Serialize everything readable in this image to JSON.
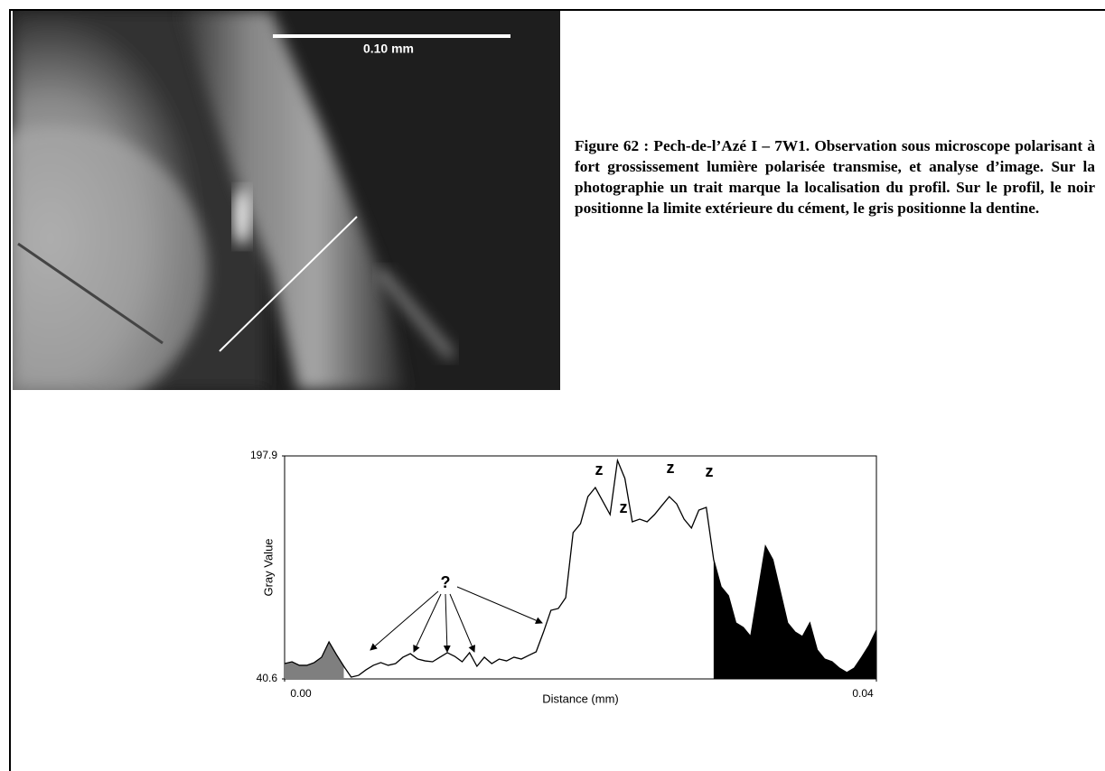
{
  "figure": {
    "scale_bar": "0.10 mm",
    "caption": "Figure 62 : Pech-de-l’Azé I – 7W1. Observation sous microscope polarisant à fort grossissement lumière polarisée transmise, et analyse d’image. Sur la photographie un trait marque la localisation du profil. Sur le profil, le noir positionne la limite extérieure du cément, le gris positionne la dentine."
  },
  "chart_data": {
    "type": "line",
    "x_label": "Distance (mm)",
    "y_label": "Gray Value",
    "xlim": [
      0,
      0.04
    ],
    "ylim": [
      40.6,
      197.9
    ],
    "xticks": [
      {
        "value": 0,
        "label": "0.00"
      },
      {
        "value": 0.04,
        "label": "0.04"
      }
    ],
    "yticks": [
      40.6,
      197.9
    ],
    "color": "#000000",
    "x": [
      0,
      0.0005,
      0.001,
      0.0015,
      0.002,
      0.0025,
      0.003,
      0.0035,
      0.004,
      0.0045,
      0.005,
      0.0055,
      0.006,
      0.0065,
      0.007,
      0.0075,
      0.008,
      0.0085,
      0.009,
      0.0095,
      0.01,
      0.0105,
      0.011,
      0.0115,
      0.012,
      0.0125,
      0.013,
      0.0135,
      0.014,
      0.0145,
      0.015,
      0.0155,
      0.016,
      0.0165,
      0.017,
      0.0175,
      0.018,
      0.0185,
      0.019,
      0.0195,
      0.02,
      0.0205,
      0.021,
      0.0215,
      0.022,
      0.0225,
      0.023,
      0.0235,
      0.024,
      0.0245,
      0.025,
      0.0255,
      0.026,
      0.0265,
      0.027,
      0.0275,
      0.028,
      0.0285,
      0.029,
      0.0295,
      0.03,
      0.0305,
      0.031,
      0.0315,
      0.032,
      0.0325,
      0.033,
      0.0335,
      0.034,
      0.0345,
      0.035,
      0.0355,
      0.036,
      0.0365,
      0.037,
      0.0375,
      0.038,
      0.0385,
      0.039,
      0.0395,
      0.04
    ],
    "values": [
      51.4,
      52.7,
      50.2,
      50.2,
      52.1,
      55.9,
      66.7,
      57.8,
      49.5,
      41.9,
      43.1,
      47.0,
      50.2,
      52.1,
      50.2,
      51.4,
      55.9,
      58.4,
      54.6,
      53.3,
      52.7,
      55.9,
      59.1,
      56.5,
      52.7,
      59.1,
      49.5,
      55.9,
      51.4,
      54.6,
      53.3,
      55.9,
      54.6,
      57.2,
      59.7,
      73.7,
      89.0,
      90.3,
      97.9,
      143.8,
      150.1,
      169.2,
      175.6,
      166.0,
      156.5,
      194.7,
      182.0,
      151.4,
      153.3,
      151.4,
      156.5,
      162.9,
      169.2,
      164.1,
      153.3,
      147.0,
      159.7,
      161.6,
      124.7,
      105.6,
      99.2,
      80.1,
      76.9,
      70.5,
      102.4,
      134.2,
      124.7,
      102.4,
      80.1,
      73.7,
      70.5,
      80.1,
      61.0,
      54.6,
      52.7,
      48.2,
      45.1,
      48.2,
      55.9,
      64.2,
      75.0
    ],
    "fill_regions": [
      {
        "from": 0,
        "to": 0.004,
        "color": "#7f7f7f"
      },
      {
        "from": 0.029,
        "to": 0.04,
        "color": "#000000"
      }
    ],
    "annotations": [
      "z",
      "z",
      "z",
      "z",
      "?"
    ]
  }
}
